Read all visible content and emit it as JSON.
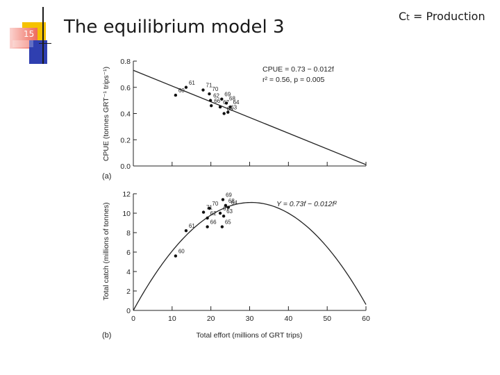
{
  "slide": {
    "number": "15",
    "title": "The equilibrium model 3",
    "note_main": "C",
    "note_sub": "t",
    "note_rest": " = Production",
    "colors": {
      "accent_gold": "#f5c200",
      "accent_blue": "#2f3fb0",
      "accent_red": "#e8483a",
      "ink": "#1a1a1a"
    }
  },
  "chart_data": [
    {
      "type": "scatter",
      "panel_label": "(a)",
      "xlabel": "",
      "ylabel": "CPUE (tonnes GRT⁻¹ trips⁻¹)",
      "xlim": [
        0,
        60
      ],
      "ylim": [
        0,
        0.8
      ],
      "x_ticks": [
        0,
        10,
        20,
        30,
        40,
        50,
        60
      ],
      "y_ticks": [
        0.0,
        0.2,
        0.4,
        0.6,
        0.8
      ],
      "y_tick_labels": [
        "0.0",
        "0.2",
        "0.4",
        "0.6",
        "0.8"
      ],
      "show_x_tick_labels": false,
      "grid": false,
      "annotation_line1": "CPUE = 0.73 − 0.012f",
      "annotation_line2": "r² = 0.56, p = 0.005",
      "fit": {
        "intercept": 0.73,
        "slope": -0.012
      },
      "points": [
        {
          "label": "60",
          "x": 10.9,
          "y": 0.54
        },
        {
          "label": "61",
          "x": 13.6,
          "y": 0.6
        },
        {
          "label": "71",
          "x": 18.0,
          "y": 0.58
        },
        {
          "label": "70",
          "x": 19.6,
          "y": 0.55
        },
        {
          "label": "62",
          "x": 19.9,
          "y": 0.5
        },
        {
          "label": "69",
          "x": 22.8,
          "y": 0.51
        },
        {
          "label": "66",
          "x": 20.1,
          "y": 0.46
        },
        {
          "label": "67",
          "x": 22.4,
          "y": 0.45
        },
        {
          "label": "68",
          "x": 24.0,
          "y": 0.48
        },
        {
          "label": "64",
          "x": 25.0,
          "y": 0.45
        },
        {
          "label": "65",
          "x": 23.4,
          "y": 0.4
        },
        {
          "label": "63",
          "x": 24.4,
          "y": 0.41
        }
      ]
    },
    {
      "type": "scatter",
      "panel_label": "(b)",
      "xlabel": "Total effort (millions of GRT trips)",
      "ylabel": "Total catch (millions of tonnes)",
      "xlim": [
        0,
        60
      ],
      "ylim": [
        0,
        12
      ],
      "x_ticks": [
        0,
        10,
        20,
        30,
        40,
        50,
        60
      ],
      "x_tick_labels": [
        "0",
        "10",
        "20",
        "30",
        "40",
        "50",
        "60"
      ],
      "y_ticks": [
        0,
        2,
        4,
        6,
        8,
        10,
        12
      ],
      "y_tick_labels": [
        "0",
        "2",
        "4",
        "6",
        "8",
        "10",
        "12"
      ],
      "grid": false,
      "annotation": "Y = 0.73f − 0.012f²",
      "fit": {
        "a": 0.73,
        "b": 0.012
      },
      "points": [
        {
          "label": "60",
          "x": 10.9,
          "y": 5.6
        },
        {
          "label": "61",
          "x": 13.6,
          "y": 8.2
        },
        {
          "label": "71",
          "x": 18.1,
          "y": 10.1
        },
        {
          "label": "70",
          "x": 19.6,
          "y": 10.5
        },
        {
          "label": "62",
          "x": 19.1,
          "y": 9.5
        },
        {
          "label": "66",
          "x": 19.1,
          "y": 8.6
        },
        {
          "label": "67",
          "x": 22.4,
          "y": 10.0
        },
        {
          "label": "69",
          "x": 23.1,
          "y": 11.4
        },
        {
          "label": "68",
          "x": 23.8,
          "y": 10.8
        },
        {
          "label": "64",
          "x": 24.5,
          "y": 10.6
        },
        {
          "label": "63",
          "x": 23.3,
          "y": 9.7
        },
        {
          "label": "65",
          "x": 22.9,
          "y": 8.6
        }
      ]
    }
  ]
}
